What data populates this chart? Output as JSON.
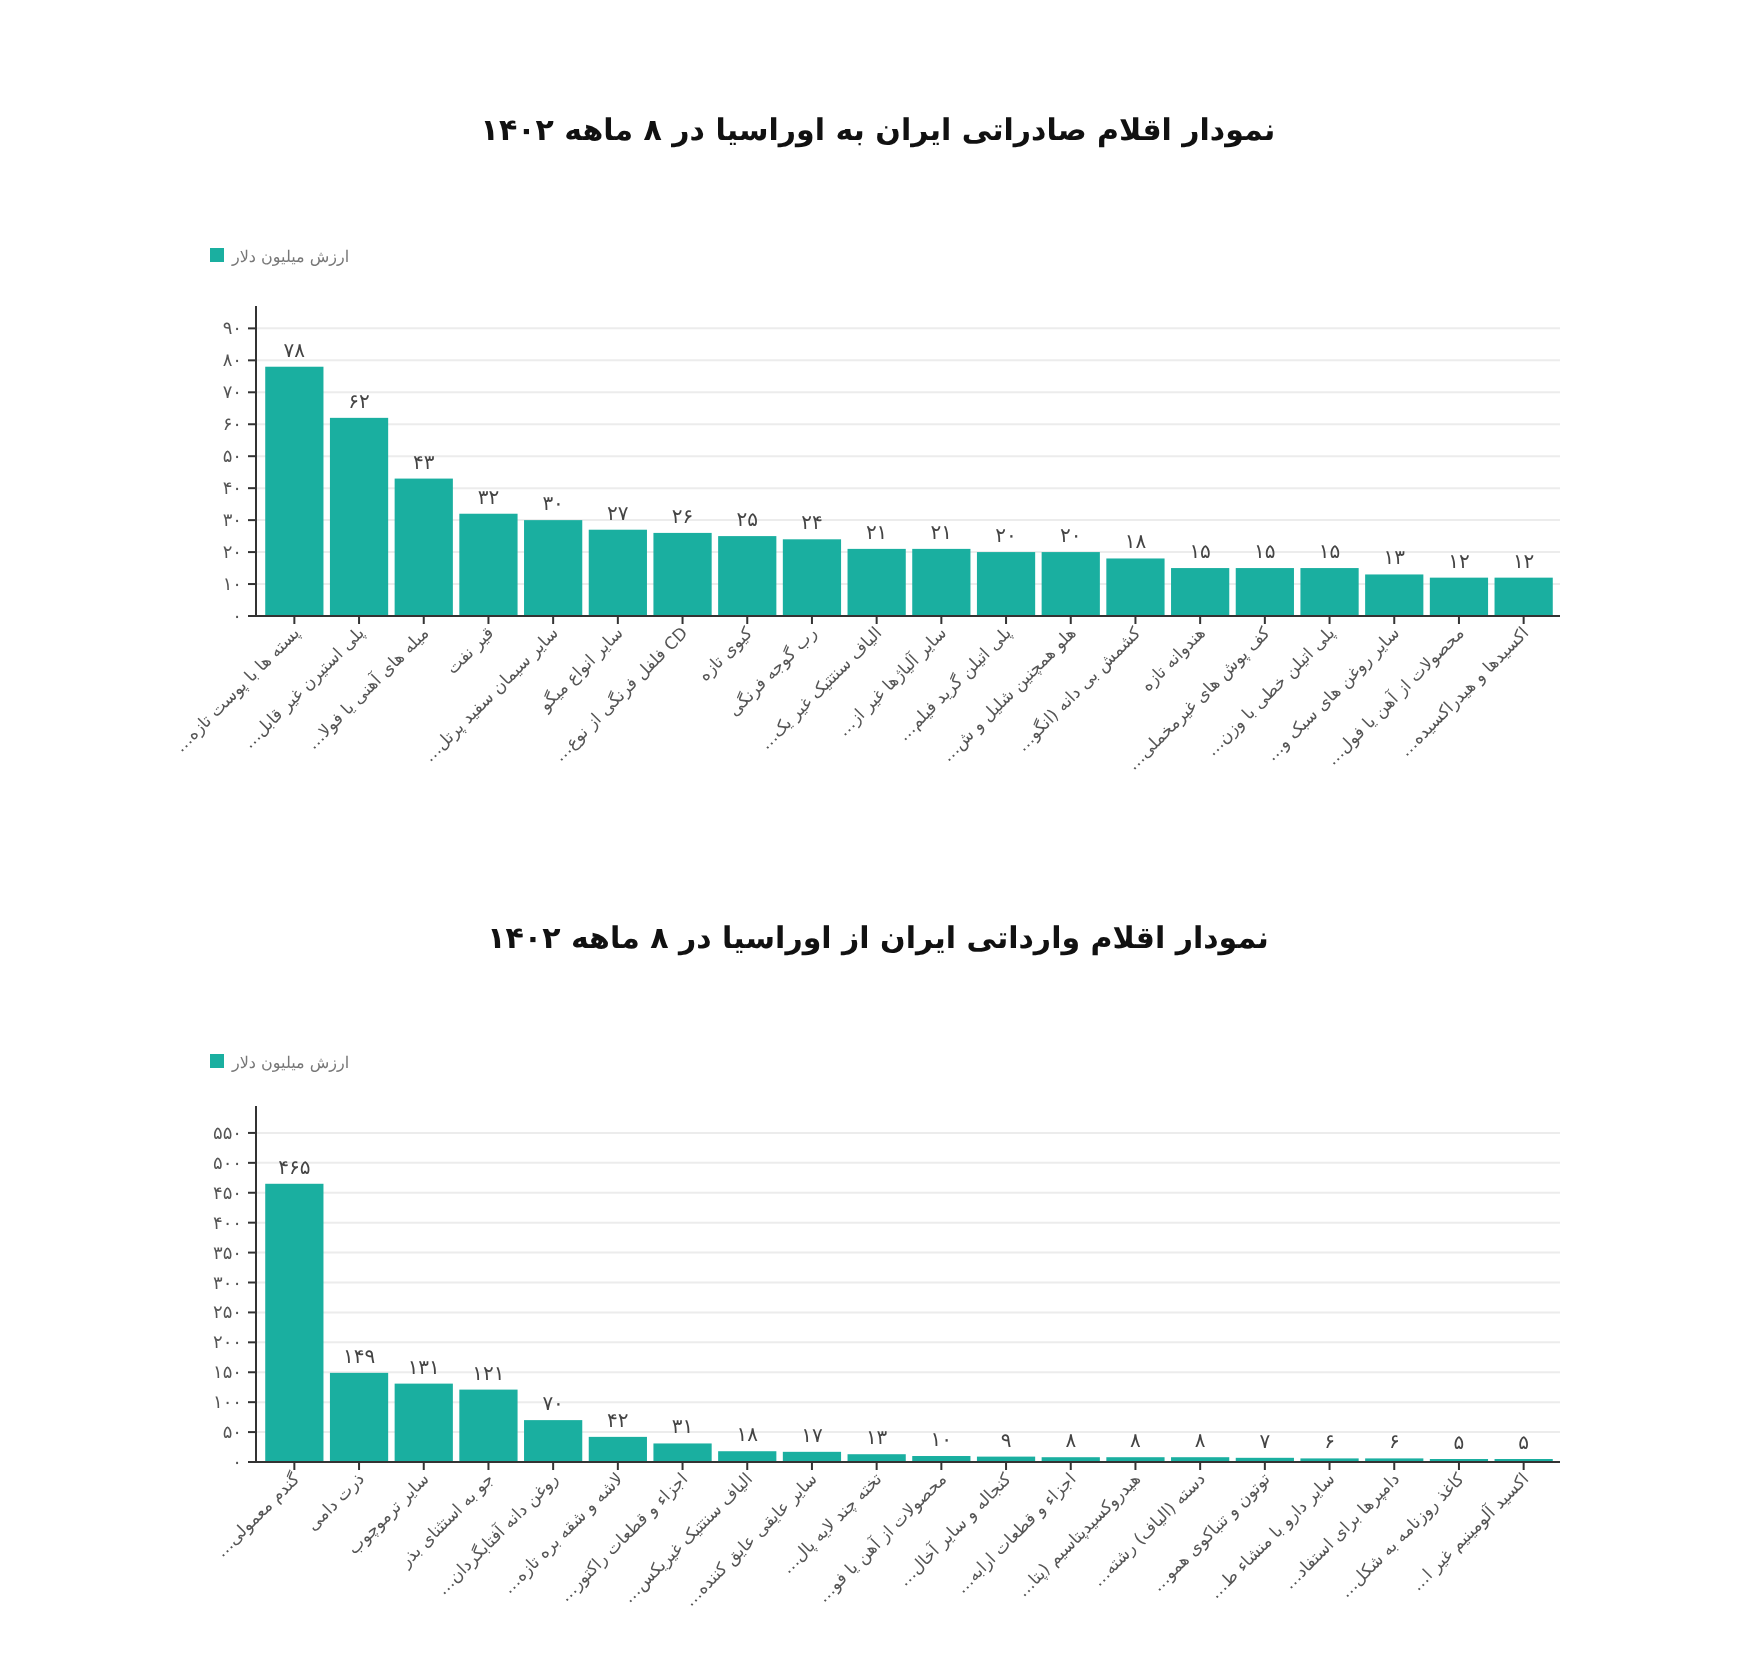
{
  "chart_data": [
    {
      "type": "bar",
      "title": "نمودار اقلام صادراتی ایران به اوراسیا در ۸ ماهه ۱۴۰۲",
      "categories": [
        "پسته ها با پوست تازه…",
        "پلی استیرن غیر قابل…",
        "میله های آهنی یا فولا…",
        "قیر نفت",
        "سایر سیمان سفید پرتل…",
        "سایر انواع میگو",
        "CD فلفل فرنگی از نوع…",
        "کیوی تازه",
        "رب گوجه فرنگی",
        "الیاف سنتتیک غیر یک…",
        "سایر آلیاژها غیر از…",
        "پلی اتیلن گرید فیلم…",
        "هلو همچنین شلیل و ش…",
        "کشمش بی دانه (انگو…",
        "هندوانه تازه",
        "کف پوش های غیرمخملی…",
        "پلی اتیلن خطی با وزن…",
        "سایر روغن های سبک و…",
        "محصولات از آهن یا فول…",
        "اکسیدها و هیدراکسیده…"
      ],
      "series": [
        {
          "name": "ارزش میلیون دلار",
          "color": "#1aafa0",
          "values": [
            78,
            62,
            43,
            32,
            30,
            27,
            26,
            25,
            24,
            21,
            21,
            20,
            20,
            18,
            15,
            15,
            15,
            13,
            12,
            12
          ],
          "value_labels": [
            "۷۸",
            "۶۲",
            "۴۳",
            "۳۲",
            "۳۰",
            "۲۷",
            "۲۶",
            "۲۵",
            "۲۴",
            "۲۱",
            "۲۱",
            "۲۰",
            "۲۰",
            "۱۸",
            "۱۵",
            "۱۵",
            "۱۵",
            "۱۳",
            "۱۲",
            "۱۲"
          ]
        }
      ],
      "ylim": [
        0,
        97
      ],
      "yticks": [
        {
          "value": 0,
          "label": "۰"
        },
        {
          "value": 10,
          "label": "۱۰"
        },
        {
          "value": 20,
          "label": "۲۰"
        },
        {
          "value": 30,
          "label": "۳۰"
        },
        {
          "value": 40,
          "label": "۴۰"
        },
        {
          "value": 50,
          "label": "۵۰"
        },
        {
          "value": 60,
          "label": "۶۰"
        },
        {
          "value": 70,
          "label": "۷۰"
        },
        {
          "value": 80,
          "label": "۸۰"
        },
        {
          "value": 90,
          "label": "۹۰"
        }
      ],
      "grid": "y",
      "legend": "top left"
    },
    {
      "type": "bar",
      "title": "نمودار اقلام وارداتی ایران از اوراسیا در ۸ ماهه ۱۴۰۲",
      "categories": [
        "گندم معمولی…",
        "ذرت دامی",
        "سایر ترموچوب",
        "جو به استثنای بذر",
        "روغن دانه آفتابگردان…",
        "لاشه و شقه بره تازه…",
        "اجزاء و قطعات راکتور…",
        "الیاف سنتتیک غیریکس…",
        "سایر عایقی عایق کننده…",
        "تخته چند لایه پال…",
        "محصولات از آهن یا فو…",
        "کنجاله و سایر آخال…",
        "اجزاء و قطعات ارابه…",
        "هیدروکسیدپتاسیم (پتا…",
        "دسته (الیاف) رشته…",
        "توتون و تنباکوی همو…",
        "سایر دارو با منشاء ط…",
        "دامپرها برای استفاد…",
        "کاغذ روزنامه به شکل…",
        "اکسید آلومینیم غیر ا…"
      ],
      "series": [
        {
          "name": "ارزش میلیون دلار",
          "color": "#1aafa0",
          "values": [
            465,
            149,
            131,
            121,
            70,
            42,
            31,
            18,
            17,
            13,
            10,
            9,
            8,
            8,
            8,
            7,
            6,
            6,
            5,
            5
          ],
          "value_labels": [
            "۴۶۵",
            "۱۴۹",
            "۱۳۱",
            "۱۲۱",
            "۷۰",
            "۴۲",
            "۳۱",
            "۱۸",
            "۱۷",
            "۱۳",
            "۱۰",
            "۹",
            "۸",
            "۸",
            "۸",
            "۷",
            "۶",
            "۶",
            "۵",
            "۵"
          ]
        }
      ],
      "ylim": [
        0,
        595
      ],
      "yticks": [
        {
          "value": 0,
          "label": "۰"
        },
        {
          "value": 50,
          "label": "۵۰"
        },
        {
          "value": 100,
          "label": "۱۰۰"
        },
        {
          "value": 150,
          "label": "۱۵۰"
        },
        {
          "value": 200,
          "label": "۲۰۰"
        },
        {
          "value": 250,
          "label": "۲۵۰"
        },
        {
          "value": 300,
          "label": "۳۰۰"
        },
        {
          "value": 350,
          "label": "۳۵۰"
        },
        {
          "value": 400,
          "label": "۴۰۰"
        },
        {
          "value": 450,
          "label": "۴۵۰"
        },
        {
          "value": 500,
          "label": "۵۰۰"
        },
        {
          "value": 550,
          "label": "۵۵۰"
        }
      ],
      "grid": "y",
      "legend": "top left"
    }
  ]
}
